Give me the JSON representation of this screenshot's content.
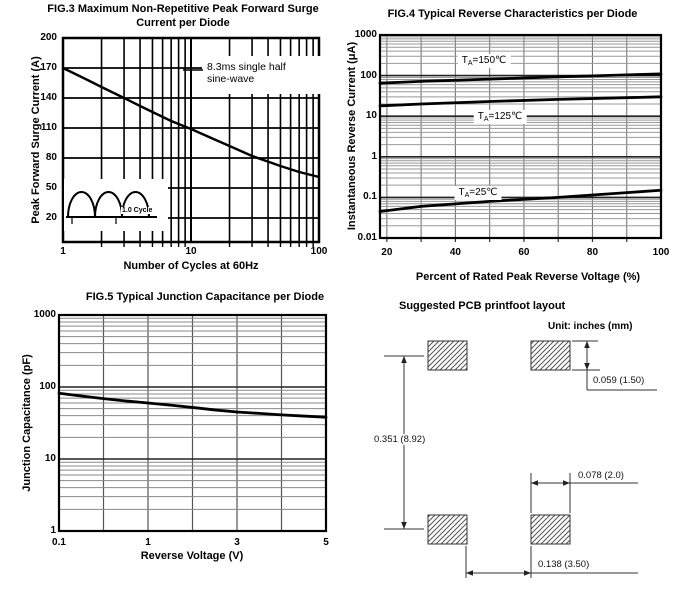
{
  "fig3": {
    "title_line1": "FIG.3 Maximum Non-Repetitive Peak Forward Surge",
    "title_line2": "Current per Diode",
    "xlabel": "Number of Cycles at 60Hz",
    "ylabel": "Peak Forward Surge Current (A)",
    "annotation_line1": "8.3ms single half",
    "annotation_line2": "sine-wave",
    "inset_label": "1.0 Cycle",
    "yticks": [
      "200",
      "170",
      "140",
      "110",
      "80",
      "50",
      "20"
    ],
    "xticks": [
      "1",
      "10",
      "100"
    ]
  },
  "fig4": {
    "title": "FIG.4 Typical Reverse Characteristics per Diode",
    "xlabel": "Percent of Rated Peak Reverse Voltage (%)",
    "ylabel": "Instantaneous Reverse Current (μA)",
    "yticks": [
      "1000",
      "100",
      "10",
      "1",
      "0.1",
      "0.01"
    ],
    "xticks": [
      "20",
      "40",
      "60",
      "80",
      "100"
    ],
    "curve_labels": [
      {
        "prefix": "T",
        "sub": "A",
        "suffix": "=150℃"
      },
      {
        "prefix": "T",
        "sub": "A",
        "suffix": "=125℃"
      },
      {
        "prefix": "T",
        "sub": "A",
        "suffix": "=25℃"
      }
    ]
  },
  "fig5": {
    "title": "FIG.5 Typical Junction Capacitance per Diode",
    "xlabel": "Reverse Voltage (V)",
    "ylabel": "Junction Capacitance (pF)",
    "yticks": [
      "1000",
      "100",
      "10",
      "1"
    ],
    "xticks": [
      "0.1",
      "1",
      "3",
      "5"
    ]
  },
  "pcb": {
    "title": "Suggested PCB printfoot layout",
    "unit_note": "Unit: inches (mm)",
    "dim_vertical": "0.351 (8.92)",
    "dim_pad_height": "0.059 (1.50)",
    "dim_pad_width": "0.078 (2.0)",
    "dim_gap": "0.138 (3.50)"
  },
  "chart_data": [
    {
      "id": "fig3",
      "type": "line",
      "title": "FIG.3 Maximum Non-Repetitive Peak Forward Surge Current per Diode",
      "xlabel": "Number of Cycles at 60Hz",
      "ylabel": "Peak Forward Surge Current (A)",
      "x_scale": "log",
      "xlim": [
        1,
        100
      ],
      "ylim": [
        20,
        200
      ],
      "ytick_values": [
        200,
        170,
        140,
        110,
        80,
        50,
        20
      ],
      "xtick_values": [
        1,
        10,
        100
      ],
      "grid": true,
      "annotation": "8.3ms single half sine-wave",
      "series": [
        {
          "name": "peak forward surge current",
          "points": [
            [
              1,
              170
            ],
            [
              1.5,
              159
            ],
            [
              2,
              151
            ],
            [
              3,
              140
            ],
            [
              4,
              132
            ],
            [
              5,
              126
            ],
            [
              7,
              117
            ],
            [
              10,
              109
            ],
            [
              15,
              99
            ],
            [
              20,
              92
            ],
            [
              30,
              82
            ],
            [
              50,
              72
            ],
            [
              70,
              66
            ],
            [
              100,
              61
            ]
          ]
        }
      ]
    },
    {
      "id": "fig4",
      "type": "line",
      "title": "FIG.4 Typical Reverse Characteristics per Diode",
      "xlabel": "Percent of Rated Peak Reverse Voltage (%)",
      "ylabel": "Instantaneous Reverse Current (μA)",
      "x_scale": "linear",
      "y_scale": "log",
      "xlim": [
        18,
        100
      ],
      "ylim": [
        0.01,
        1000
      ],
      "xtick_values": [
        20,
        40,
        60,
        80,
        100
      ],
      "ytick_values": [
        1000,
        100,
        10,
        1,
        0.1,
        0.01
      ],
      "grid": true,
      "series": [
        {
          "name": "TA=150℃",
          "points": [
            [
              18,
              65
            ],
            [
              30,
              72
            ],
            [
              50,
              82
            ],
            [
              70,
              93
            ],
            [
              100,
              110
            ]
          ]
        },
        {
          "name": "TA=125℃",
          "points": [
            [
              18,
              18
            ],
            [
              30,
              20
            ],
            [
              50,
              23
            ],
            [
              70,
              26
            ],
            [
              100,
              30
            ]
          ]
        },
        {
          "name": "TA=25℃",
          "points": [
            [
              18,
              0.045
            ],
            [
              30,
              0.06
            ],
            [
              50,
              0.08
            ],
            [
              70,
              0.1
            ],
            [
              100,
              0.15
            ]
          ]
        }
      ]
    },
    {
      "id": "fig5",
      "type": "line",
      "title": "FIG.5 Typical Junction Capacitance per Diode",
      "xlabel": "Reverse Voltage (V)",
      "ylabel": "Junction Capacitance (pF)",
      "x_scale": "segmented",
      "y_scale": "log",
      "ylim": [
        1,
        1000
      ],
      "ytick_values": [
        1000,
        100,
        10,
        1
      ],
      "xtick_values": [
        0.1,
        1,
        3,
        5
      ],
      "x_tick_divisions": [
        0,
        2,
        4,
        6
      ],
      "grid": true,
      "series": [
        {
          "name": "junction capacitance",
          "points": [
            [
              0.1,
              82
            ],
            [
              1,
              60
            ],
            [
              3,
              45
            ],
            [
              5,
              38
            ]
          ],
          "render_points_div": [
            [
              0,
              82
            ],
            [
              0.5,
              75
            ],
            [
              1,
              69
            ],
            [
              1.5,
              64
            ],
            [
              2,
              60
            ],
            [
              2.5,
              56
            ],
            [
              3,
              52
            ],
            [
              3.5,
              48
            ],
            [
              4,
              45
            ],
            [
              4.5,
              43
            ],
            [
              5,
              41
            ],
            [
              5.5,
              39.5
            ],
            [
              6,
              38
            ]
          ]
        }
      ]
    }
  ]
}
